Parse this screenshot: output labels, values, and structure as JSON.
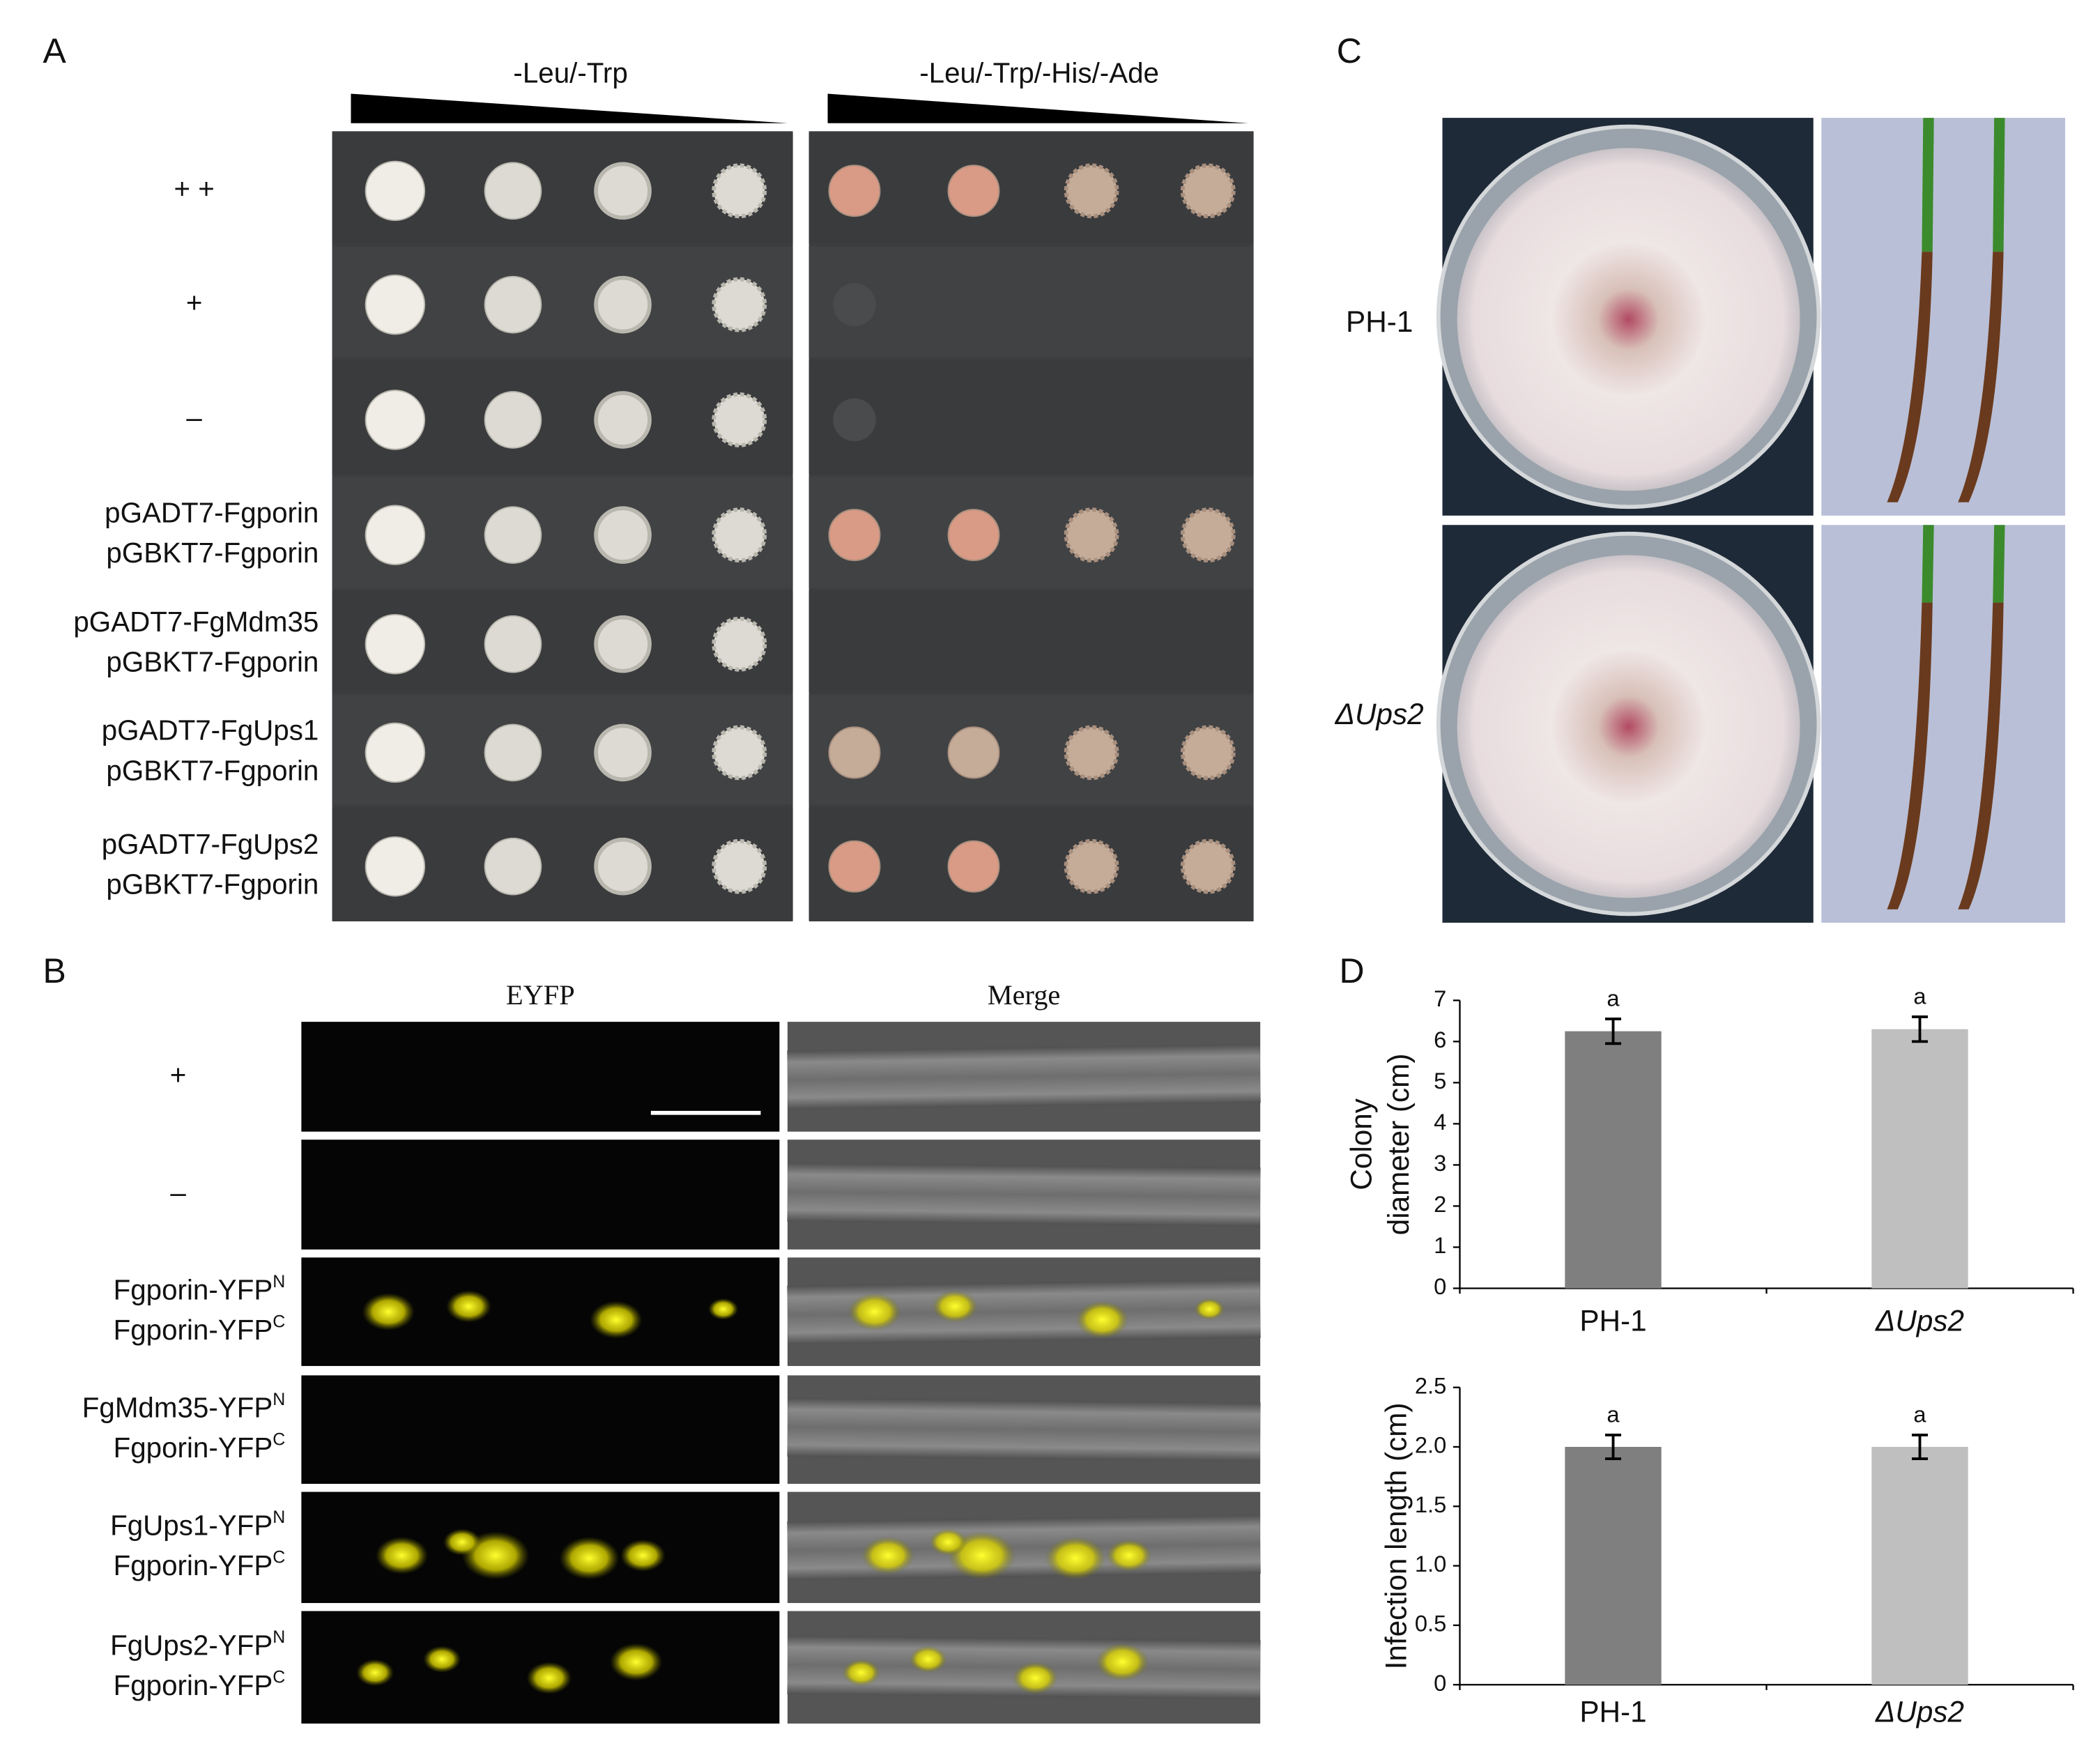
{
  "panels": {
    "A": {
      "letter": "A",
      "columns": [
        "-Leu/-Trp",
        "-Leu/-Trp/-His/-Ade"
      ],
      "rows": [
        [
          "+ +"
        ],
        [
          "+"
        ],
        [
          "–"
        ],
        [
          "pGADT7-Fgporin",
          "pGBKT7-Fgporin"
        ],
        [
          "pGADT7-FgMdm35",
          "pGBKT7-Fgporin"
        ],
        [
          "pGADT7-FgUps1",
          "pGBKT7-Fgporin"
        ],
        [
          "pGADT7-FgUps2",
          "pGBKT7-Fgporin"
        ]
      ]
    },
    "B": {
      "letter": "B",
      "columns": [
        "EYFP",
        "Merge"
      ],
      "rows": [
        [
          {
            "text": "+"
          }
        ],
        [
          {
            "text": "–"
          }
        ],
        [
          {
            "text": "Fgporin-YFP",
            "sup": "N"
          },
          {
            "text": "Fgporin-YFP",
            "sup": "C"
          }
        ],
        [
          {
            "text": "FgMdm35-YFP",
            "sup": "N"
          },
          {
            "text": "Fgporin-YFP",
            "sup": "C"
          }
        ],
        [
          {
            "text": "FgUps1-YFP",
            "sup": "N"
          },
          {
            "text": "Fgporin-YFP",
            "sup": "C"
          }
        ],
        [
          {
            "text": "FgUps2-YFP",
            "sup": "N"
          },
          {
            "text": "Fgporin-YFP",
            "sup": "C"
          }
        ]
      ]
    },
    "C": {
      "letter": "C",
      "rows": [
        "PH-1",
        "ΔUps2"
      ]
    },
    "D": {
      "letter": "D"
    }
  },
  "chart_data": [
    {
      "type": "bar",
      "y_label": [
        "Colony",
        "diameter (cm)"
      ],
      "categories": [
        "PH-1",
        "ΔUps2"
      ],
      "values": [
        6.25,
        6.3
      ],
      "errors": [
        0.3,
        0.3
      ],
      "annotations": [
        "a",
        "a"
      ],
      "colors": [
        "#7f7f7f",
        "#bfbfbf"
      ],
      "ylim": [
        0,
        7
      ],
      "yticks": [
        0,
        1,
        2,
        3,
        4,
        5,
        6,
        7
      ]
    },
    {
      "type": "bar",
      "y_label": [
        "Infection length (cm)"
      ],
      "categories": [
        "PH-1",
        "ΔUps2"
      ],
      "values": [
        2.0,
        2.0
      ],
      "errors": [
        0.1,
        0.1
      ],
      "annotations": [
        "a",
        "a"
      ],
      "colors": [
        "#7f7f7f",
        "#bfbfbf"
      ],
      "ylim": [
        0,
        2.5
      ],
      "yticks": [
        0,
        0.5,
        {
          "value": 1,
          "label": "1.0"
        },
        1.5,
        {
          "value": 2,
          "label": "2.0"
        },
        2.5
      ]
    }
  ]
}
